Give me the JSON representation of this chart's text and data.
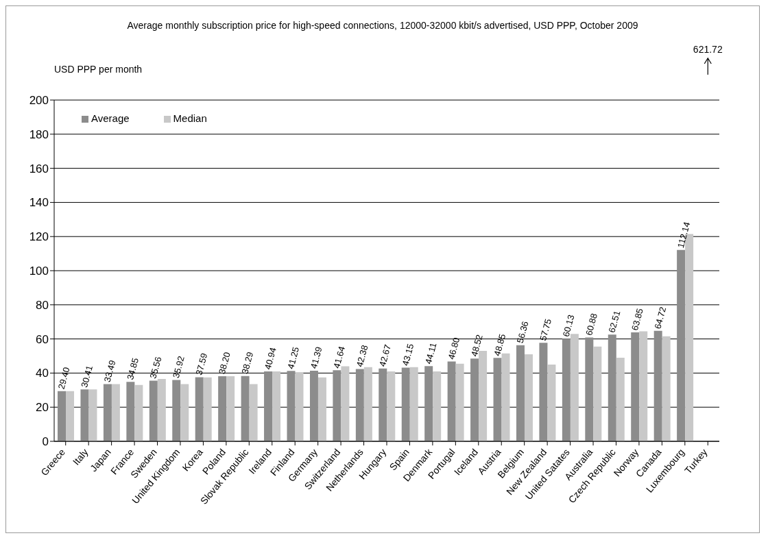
{
  "chart_data": {
    "type": "bar",
    "title": "Average monthly subscription price for high-speed connections, 12000-32000 kbit/s advertised, USD PPP, October 2009",
    "ylabel": "USD PPP per month",
    "categories": [
      "Greece",
      "Italy",
      "Japan",
      "France",
      "Sweden",
      "United Kingdom",
      "Korea",
      "Poland",
      "Slovak Republic",
      "Ireland",
      "Finland",
      "Germany",
      "Switzerland",
      "Netherlands",
      "Hungary",
      "Spain",
      "Denmark",
      "Portugal",
      "Iceland",
      "Austria",
      "Belgium",
      "New Zealand",
      "United Satates",
      "Australia",
      "Czech Republic",
      "Norway",
      "Canada",
      "Luxembourg",
      "Turkey"
    ],
    "series": [
      {
        "name": "Average",
        "color": "#8c8c8c",
        "values": [
          29.4,
          30.41,
          33.49,
          34.85,
          35.56,
          35.92,
          37.59,
          38.2,
          38.29,
          40.94,
          41.25,
          41.39,
          41.64,
          42.38,
          42.67,
          43.15,
          44.11,
          46.8,
          48.52,
          48.85,
          56.36,
          57.75,
          60.13,
          60.88,
          62.51,
          63.85,
          64.72,
          112.14,
          null
        ],
        "value_labels": [
          "29.40",
          "30.41",
          "33.49",
          "34.85",
          "35.56",
          "35.92",
          "37.59",
          "38.20",
          "38.29",
          "40.94",
          "41.25",
          "41.39",
          "41.64",
          "42.38",
          "42.67",
          "43.15",
          "44.11",
          "46.80",
          "48.52",
          "48.85",
          "56.36",
          "57.75",
          "60.13",
          "60.88",
          "62.51",
          "63.85",
          "64.72",
          "112.14",
          "621.72"
        ]
      },
      {
        "name": "Median",
        "color": "#c8c8c8",
        "values": [
          29.4,
          30.4,
          33.5,
          33,
          36.5,
          33.5,
          37.5,
          38.2,
          33.5,
          41,
          40.5,
          37.5,
          44,
          43.5,
          41,
          43.5,
          41,
          45.5,
          53,
          51.5,
          51,
          45,
          63,
          55.5,
          49,
          64.5,
          61.5,
          121.5,
          null
        ]
      }
    ],
    "ylim": [
      0,
      200
    ],
    "yticks": [
      0,
      20,
      40,
      60,
      80,
      100,
      120,
      140,
      160,
      180,
      200
    ],
    "grid": "y",
    "legend": "top left"
  }
}
